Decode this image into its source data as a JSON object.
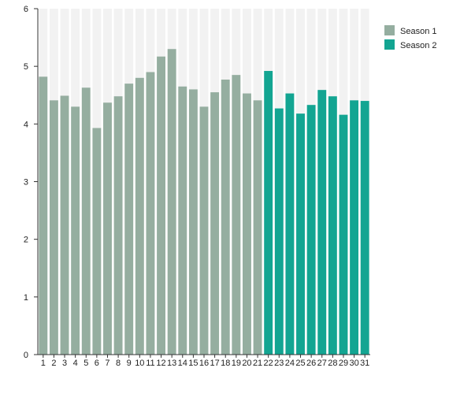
{
  "chart_data": {
    "type": "bar",
    "title": "",
    "xlabel": "",
    "ylabel": "",
    "ylim": [
      0,
      6
    ],
    "yticks": [
      0,
      1,
      2,
      3,
      4,
      5,
      6
    ],
    "categories": [
      "1",
      "2",
      "3",
      "4",
      "5",
      "6",
      "7",
      "8",
      "9",
      "10",
      "11",
      "12",
      "13",
      "14",
      "15",
      "16",
      "17",
      "18",
      "19",
      "20",
      "21",
      "22",
      "23",
      "24",
      "25",
      "26",
      "27",
      "28",
      "29",
      "30",
      "31"
    ],
    "values": [
      4.82,
      4.41,
      4.49,
      4.3,
      4.63,
      3.93,
      4.37,
      4.48,
      4.7,
      4.8,
      4.9,
      5.17,
      5.3,
      4.65,
      4.6,
      4.3,
      4.55,
      4.77,
      4.85,
      4.53,
      4.41,
      4.92,
      4.27,
      4.53,
      4.18,
      4.33,
      4.59,
      4.48,
      4.16,
      4.41,
      4.4
    ],
    "season_of": [
      1,
      1,
      1,
      1,
      1,
      1,
      1,
      1,
      1,
      1,
      1,
      1,
      1,
      1,
      1,
      1,
      1,
      1,
      1,
      1,
      1,
      2,
      2,
      2,
      2,
      2,
      2,
      2,
      2,
      2,
      2
    ],
    "series": [
      {
        "name": "Season 1",
        "color": "#95aea0",
        "categories": [
          "1",
          "2",
          "3",
          "4",
          "5",
          "6",
          "7",
          "8",
          "9",
          "10",
          "11",
          "12",
          "13",
          "14",
          "15",
          "16",
          "17",
          "18",
          "19",
          "20",
          "21"
        ]
      },
      {
        "name": "Season 2",
        "color": "#13a592",
        "categories": [
          "22",
          "23",
          "24",
          "25",
          "26",
          "27",
          "28",
          "29",
          "30",
          "31"
        ]
      }
    ],
    "grid": false,
    "background_stripes": true,
    "legend_position": "top-right"
  },
  "legend": {
    "items": [
      {
        "label": "Season 1",
        "color": "#95aea0"
      },
      {
        "label": "Season 2",
        "color": "#13a592"
      }
    ]
  }
}
